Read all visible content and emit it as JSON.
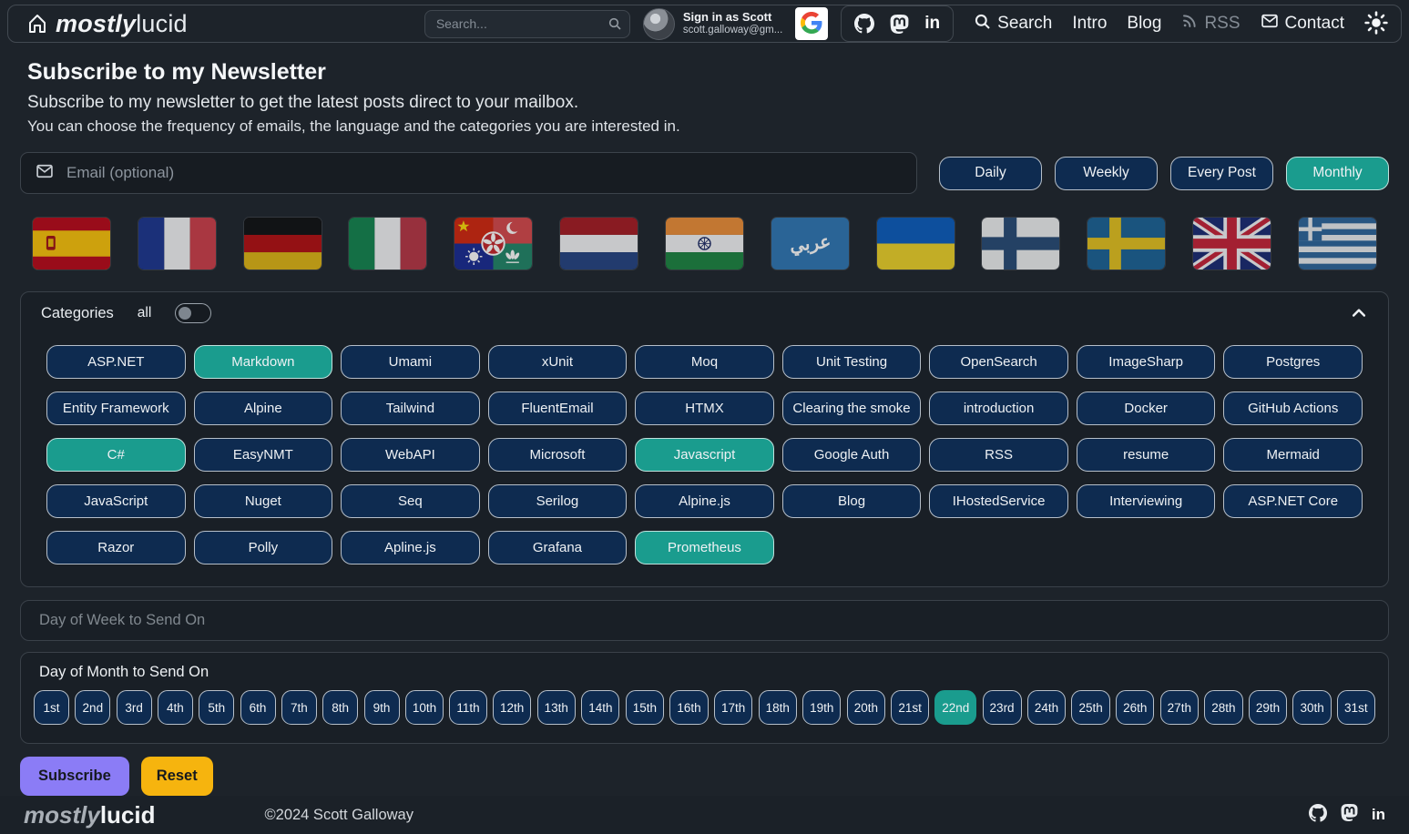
{
  "navbar": {
    "logo": {
      "bold": "mostly",
      "regular": "lucid"
    },
    "search_placeholder": "Search...",
    "signin": {
      "line1": "Sign in as Scott",
      "line2": "scott.galloway@gm..."
    },
    "links": [
      {
        "label": "Search",
        "icon": "search-icon"
      },
      {
        "label": "Intro"
      },
      {
        "label": "Blog"
      },
      {
        "label": "RSS",
        "icon": "rss-icon",
        "muted": true
      },
      {
        "label": "Contact",
        "icon": "envelope-icon"
      }
    ],
    "icons": [
      "home-icon",
      "google-icon",
      "github-icon",
      "mastodon-icon",
      "linkedin-icon",
      "sun-icon"
    ]
  },
  "header": {
    "title": "Subscribe to my Newsletter",
    "subtitle1": "Subscribe to my newsletter to get the latest posts direct to your mailbox.",
    "subtitle2": "You can choose the frequency of emails, the language and the categories you are interested in."
  },
  "form": {
    "email_placeholder": "Email (optional)",
    "frequencies": [
      {
        "label": "Daily",
        "selected": false
      },
      {
        "label": "Weekly",
        "selected": false
      },
      {
        "label": "Every Post",
        "selected": false
      },
      {
        "label": "Monthly",
        "selected": true
      }
    ],
    "languages": [
      {
        "code": "es",
        "name": "spanish-flag-icon"
      },
      {
        "code": "fr",
        "name": "french-flag-icon"
      },
      {
        "code": "de",
        "name": "german-flag-icon"
      },
      {
        "code": "it",
        "name": "italian-flag-icon"
      },
      {
        "code": "zh",
        "name": "chinese-composite-flag-icon"
      },
      {
        "code": "nl",
        "name": "dutch-flag-icon"
      },
      {
        "code": "hi",
        "name": "indian-flag-icon"
      },
      {
        "code": "ar",
        "name": "arabic-flag-icon",
        "label": "عربي"
      },
      {
        "code": "uk",
        "name": "ukrainian-flag-icon"
      },
      {
        "code": "fi",
        "name": "finnish-flag-icon"
      },
      {
        "code": "sv",
        "name": "swedish-flag-icon"
      },
      {
        "code": "en",
        "name": "uk-flag-icon"
      },
      {
        "code": "el",
        "name": "greek-flag-icon"
      }
    ],
    "categories": {
      "title": "Categories",
      "all_label": "all",
      "all_on": false,
      "items": [
        {
          "label": "ASP.NET",
          "selected": false
        },
        {
          "label": "Markdown",
          "selected": true
        },
        {
          "label": "Umami",
          "selected": false
        },
        {
          "label": "xUnit",
          "selected": false
        },
        {
          "label": "Moq",
          "selected": false
        },
        {
          "label": "Unit Testing",
          "selected": false
        },
        {
          "label": "OpenSearch",
          "selected": false
        },
        {
          "label": "ImageSharp",
          "selected": false
        },
        {
          "label": "Postgres",
          "selected": false
        },
        {
          "label": "Entity Framework",
          "selected": false
        },
        {
          "label": "Alpine",
          "selected": false
        },
        {
          "label": "Tailwind",
          "selected": false
        },
        {
          "label": "FluentEmail",
          "selected": false
        },
        {
          "label": "HTMX",
          "selected": false
        },
        {
          "label": "Clearing the smoke",
          "selected": false
        },
        {
          "label": "introduction",
          "selected": false
        },
        {
          "label": "Docker",
          "selected": false
        },
        {
          "label": "GitHub Actions",
          "selected": false
        },
        {
          "label": "C#",
          "selected": true
        },
        {
          "label": "EasyNMT",
          "selected": false
        },
        {
          "label": "WebAPI",
          "selected": false
        },
        {
          "label": "Microsoft",
          "selected": false
        },
        {
          "label": "Javascript",
          "selected": true
        },
        {
          "label": "Google Auth",
          "selected": false
        },
        {
          "label": "RSS",
          "selected": false
        },
        {
          "label": "resume",
          "selected": false
        },
        {
          "label": "Mermaid",
          "selected": false
        },
        {
          "label": "JavaScript",
          "selected": false
        },
        {
          "label": "Nuget",
          "selected": false
        },
        {
          "label": "Seq",
          "selected": false
        },
        {
          "label": "Serilog",
          "selected": false
        },
        {
          "label": "Alpine.js",
          "selected": false
        },
        {
          "label": "Blog",
          "selected": false
        },
        {
          "label": "IHostedService",
          "selected": false
        },
        {
          "label": "Interviewing",
          "selected": false
        },
        {
          "label": "ASP.NET Core",
          "selected": false
        },
        {
          "label": "Razor",
          "selected": false
        },
        {
          "label": "Polly",
          "selected": false
        },
        {
          "label": "Apline.js",
          "selected": false
        },
        {
          "label": "Grafana",
          "selected": false
        },
        {
          "label": "Prometheus",
          "selected": true
        }
      ]
    },
    "day_of_week": {
      "title": "Day of Week to Send On",
      "collapsed": true
    },
    "day_of_month": {
      "title": "Day of Month to Send On",
      "days": [
        "1st",
        "2nd",
        "3rd",
        "4th",
        "5th",
        "6th",
        "7th",
        "8th",
        "9th",
        "10th",
        "11th",
        "12th",
        "13th",
        "14th",
        "15th",
        "16th",
        "17th",
        "18th",
        "19th",
        "20th",
        "21st",
        "22nd",
        "23rd",
        "24th",
        "25th",
        "26th",
        "27th",
        "28th",
        "29th",
        "30th",
        "31st"
      ],
      "selected": "22nd"
    },
    "subscribe_label": "Subscribe",
    "reset_label": "Reset"
  },
  "footer": {
    "logo_bold": "mostly",
    "logo_regular": "lucid",
    "copyright": "©2024 Scott Galloway",
    "icons": [
      "github-icon",
      "mastodon-icon",
      "linkedin-icon"
    ]
  },
  "colors": {
    "background": "#1d232a",
    "panel": "#191f26",
    "button_navy": "#0e2b50",
    "button_border": "#b6bfc9",
    "selected_teal": "#1a9c8e",
    "subscribe_purple": "#8b7cf6",
    "reset_amber": "#f6b40e"
  }
}
